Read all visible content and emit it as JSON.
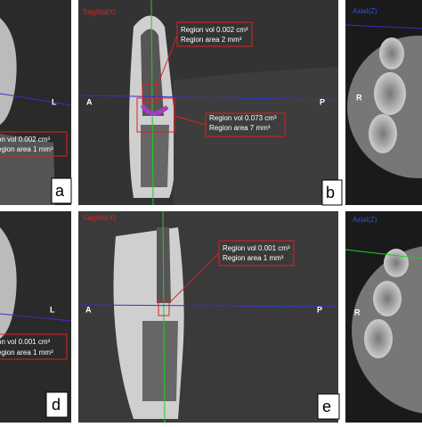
{
  "panels": [
    {
      "label": "a",
      "orientation": "L",
      "annotations": [
        {
          "lines": [
            "on vol 0.002 cm³",
            "egion area 1 mm³"
          ]
        }
      ]
    },
    {
      "view": "Sagittal(X)",
      "left": "A",
      "right": "P",
      "label": "b",
      "annotations": [
        {
          "lines": [
            "Region vol 0.002 cm³",
            "Region area 2 mm³"
          ]
        },
        {
          "lines": [
            "Region vol 0.073 cm³",
            "Region area 7 mm³"
          ]
        }
      ]
    },
    {
      "view": "Axial(Z)",
      "orientation": "R"
    },
    {
      "label": "d",
      "orientation": "L",
      "annotations": [
        {
          "lines": [
            "on vol 0.001 cm³",
            "egion area 1 mm³"
          ]
        }
      ]
    },
    {
      "view": "Sagittal(X)",
      "left": "A",
      "right": "P",
      "label": "e",
      "annotations": [
        {
          "lines": [
            "Region vol 0.001 cm³",
            "Region area 1 mm³"
          ]
        }
      ]
    },
    {
      "view": "Axial(Z)",
      "orientation": "R"
    }
  ]
}
